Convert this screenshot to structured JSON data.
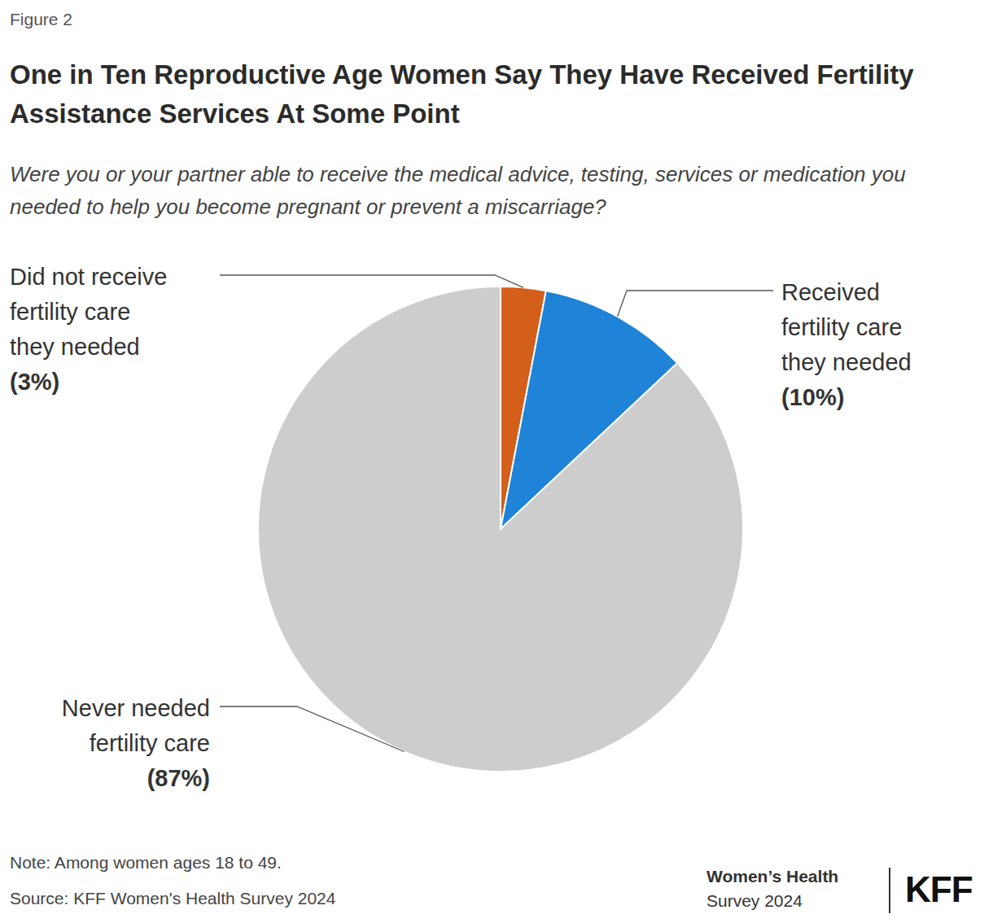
{
  "chart_data": {
    "type": "pie",
    "figure_label": "Figure 2",
    "title": "One in Ten Reproductive Age Women Say They Have Received Fertility Assistance Services At Some Point",
    "subtitle": "Were you or your partner able to receive the medical advice, testing, services or medication you needed to help you become pregnant or prevent a miscarriage?",
    "categories": [
      "Did not receive fertility care they needed",
      "Received fertility care they needed",
      "Never needed fertility care"
    ],
    "values": [
      3,
      10,
      87
    ],
    "value_labels": [
      "(3%)",
      "(10%)",
      "(87%)"
    ],
    "colors": [
      "#d35f1b",
      "#1f83d8",
      "#cdcdcd"
    ],
    "data_labels": true,
    "note": "Note: Among women ages 18 to 49.",
    "source": "Source: KFF Women's Health Survey 2024",
    "branding": {
      "name": "Women’s Health",
      "edition": "Survey 2024",
      "logo": "KFF"
    }
  }
}
